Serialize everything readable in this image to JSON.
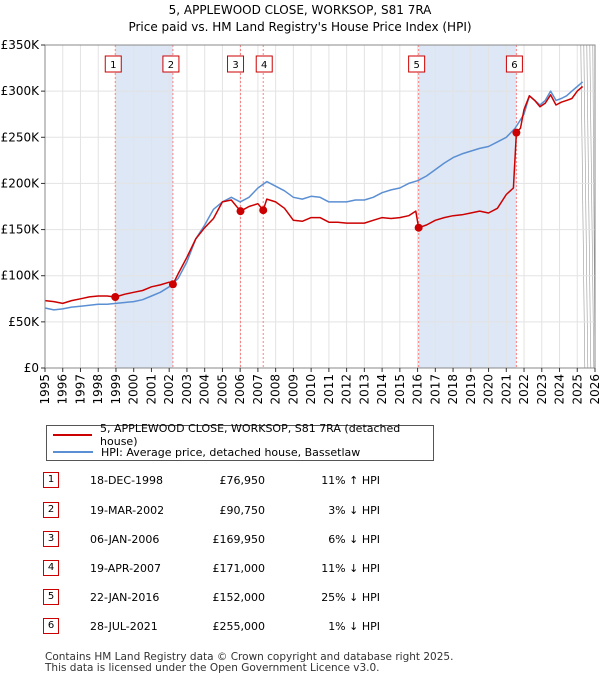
{
  "chart_data": {
    "type": "line",
    "title": "5, APPLEWOOD CLOSE, WORKSOP, S81 7RA",
    "subtitle": "Price paid vs. HM Land Registry's House Price Index (HPI)",
    "x_ticks": [
      "1995",
      "1996",
      "1997",
      "1998",
      "1999",
      "2000",
      "2001",
      "2002",
      "2003",
      "2004",
      "2005",
      "2006",
      "2007",
      "2008",
      "2009",
      "2010",
      "2011",
      "2012",
      "2013",
      "2014",
      "2015",
      "2016",
      "2017",
      "2018",
      "2019",
      "2020",
      "2021",
      "2022",
      "2023",
      "2024",
      "2025",
      "2026"
    ],
    "y_ticks": [
      "£0",
      "£50K",
      "£100K",
      "£150K",
      "£200K",
      "£250K",
      "£300K",
      "£350K"
    ],
    "xlim": [
      1995,
      2026
    ],
    "ylim": [
      0,
      350000
    ],
    "colors": {
      "property": "#cc0000",
      "hpi": "#5b8fd3",
      "shade": "#dde7f5",
      "marker_line": "#ff8080"
    },
    "series": [
      {
        "name": "5, APPLEWOOD CLOSE, WORKSOP, S81 7RA (detached house)",
        "color": "#cc0000",
        "x": [
          1995.0,
          1995.5,
          1996.0,
          1996.5,
          1997.0,
          1997.5,
          1998.0,
          1998.5,
          1998.96,
          1999.5,
          2000.0,
          2000.5,
          2001.0,
          2001.5,
          2002.0,
          2002.21,
          2002.5,
          2003.0,
          2003.5,
          2004.0,
          2004.5,
          2005.0,
          2005.5,
          2006.02,
          2006.5,
          2007.0,
          2007.3,
          2007.5,
          2008.0,
          2008.5,
          2009.0,
          2009.5,
          2010.0,
          2010.5,
          2011.0,
          2011.5,
          2012.0,
          2012.5,
          2013.0,
          2013.5,
          2014.0,
          2014.5,
          2015.0,
          2015.5,
          2015.9,
          2016.06,
          2016.5,
          2017.0,
          2017.5,
          2018.0,
          2018.5,
          2019.0,
          2019.5,
          2020.0,
          2020.5,
          2021.0,
          2021.4,
          2021.57,
          2021.8,
          2022.0,
          2022.3,
          2022.6,
          2022.9,
          2023.2,
          2023.5,
          2023.8,
          2024.1,
          2024.4,
          2024.7,
          2025.0,
          2025.3
        ],
        "values": [
          73000,
          72000,
          70000,
          73000,
          75000,
          77000,
          78000,
          78000,
          76950,
          80000,
          82000,
          84000,
          88000,
          90000,
          93000,
          90750,
          102000,
          120000,
          140000,
          152000,
          162000,
          180000,
          182000,
          169950,
          175000,
          178000,
          171000,
          183000,
          180000,
          173000,
          160000,
          159000,
          163000,
          163000,
          158000,
          158000,
          157000,
          157000,
          157000,
          160000,
          163000,
          162000,
          163000,
          165000,
          170000,
          152000,
          155000,
          160000,
          163000,
          165000,
          166000,
          168000,
          170000,
          168000,
          173000,
          188000,
          195000,
          255000,
          260000,
          280000,
          295000,
          290000,
          283000,
          287000,
          296000,
          285000,
          288000,
          290000,
          292000,
          300000,
          305000
        ]
      },
      {
        "name": "HPI: Average price, detached house, Bassetlaw",
        "color": "#5b8fd3",
        "x": [
          1995.0,
          1995.5,
          1996.0,
          1996.5,
          1997.0,
          1997.5,
          1998.0,
          1998.5,
          1999.0,
          1999.5,
          2000.0,
          2000.5,
          2001.0,
          2001.5,
          2002.0,
          2002.5,
          2003.0,
          2003.5,
          2004.0,
          2004.5,
          2005.0,
          2005.5,
          2006.0,
          2006.5,
          2007.0,
          2007.5,
          2008.0,
          2008.5,
          2009.0,
          2009.5,
          2010.0,
          2010.5,
          2011.0,
          2011.5,
          2012.0,
          2012.5,
          2013.0,
          2013.5,
          2014.0,
          2014.5,
          2015.0,
          2015.5,
          2016.0,
          2016.5,
          2017.0,
          2017.5,
          2018.0,
          2018.5,
          2019.0,
          2019.5,
          2020.0,
          2020.5,
          2021.0,
          2021.5,
          2022.0,
          2022.3,
          2022.6,
          2022.9,
          2023.2,
          2023.5,
          2023.8,
          2024.1,
          2024.4,
          2024.7,
          2025.0,
          2025.3
        ],
        "values": [
          65000,
          63000,
          64000,
          66000,
          67000,
          68000,
          69000,
          69000,
          70000,
          71000,
          72000,
          74000,
          78000,
          82000,
          88000,
          97000,
          115000,
          140000,
          155000,
          172000,
          180000,
          185000,
          180000,
          185000,
          195000,
          202000,
          197000,
          192000,
          185000,
          183000,
          186000,
          185000,
          180000,
          180000,
          180000,
          182000,
          182000,
          185000,
          190000,
          193000,
          195000,
          200000,
          203000,
          208000,
          215000,
          222000,
          228000,
          232000,
          235000,
          238000,
          240000,
          245000,
          250000,
          260000,
          275000,
          295000,
          290000,
          285000,
          290000,
          300000,
          290000,
          292000,
          295000,
          300000,
          305000,
          310000
        ]
      }
    ],
    "sale_markers": [
      {
        "label": "1",
        "x": 1998.96,
        "value": 76950
      },
      {
        "label": "2",
        "x": 2002.21,
        "value": 90750
      },
      {
        "label": "3",
        "x": 2006.02,
        "value": 169950
      },
      {
        "label": "4",
        "x": 2007.3,
        "value": 171000
      },
      {
        "label": "5",
        "x": 2016.06,
        "value": 152000
      },
      {
        "label": "6",
        "x": 2021.57,
        "value": 255000
      }
    ],
    "shaded_ranges": [
      [
        1998.96,
        2002.21
      ],
      [
        2016.06,
        2021.57
      ]
    ],
    "forecast_start": 2025.2
  },
  "legend": {
    "property_label": "5, APPLEWOOD CLOSE, WORKSOP, S81 7RA (detached house)",
    "hpi_label": "HPI: Average price, detached house, Bassetlaw"
  },
  "sales": [
    {
      "num": "1",
      "date": "18-DEC-1998",
      "price": "£76,950",
      "hpi": "11% ↑ HPI"
    },
    {
      "num": "2",
      "date": "19-MAR-2002",
      "price": "£90,750",
      "hpi": "3% ↓ HPI"
    },
    {
      "num": "3",
      "date": "06-JAN-2006",
      "price": "£169,950",
      "hpi": "6% ↓ HPI"
    },
    {
      "num": "4",
      "date": "19-APR-2007",
      "price": "£171,000",
      "hpi": "11% ↓ HPI"
    },
    {
      "num": "5",
      "date": "22-JAN-2016",
      "price": "£152,000",
      "hpi": "25% ↓ HPI"
    },
    {
      "num": "6",
      "date": "28-JUL-2021",
      "price": "£255,000",
      "hpi": "1% ↓ HPI"
    }
  ],
  "footer": {
    "line1": "Contains HM Land Registry data © Crown copyright and database right 2025.",
    "line2": "This data is licensed under the Open Government Licence v3.0."
  }
}
